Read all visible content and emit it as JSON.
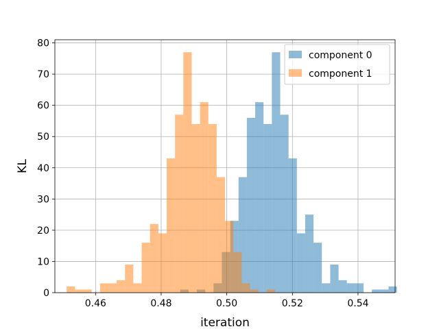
{
  "chart_data": {
    "type": "bar",
    "subtype": "overlapping-histogram",
    "xlabel": "iteration",
    "ylabel": "KL",
    "xlim": [
      0.4476,
      0.5513
    ],
    "ylim": [
      0,
      81
    ],
    "xticks": [
      0.46,
      0.48,
      0.5,
      0.52,
      0.54
    ],
    "xtick_labels": [
      "0.46",
      "0.48",
      "0.50",
      "0.52",
      "0.54"
    ],
    "yticks": [
      0,
      10,
      20,
      30,
      40,
      50,
      60,
      70,
      80
    ],
    "ytick_labels": [
      "0",
      "10",
      "20",
      "30",
      "40",
      "50",
      "60",
      "70",
      "80"
    ],
    "grid": true,
    "legend_placement": "upper-right",
    "series": [
      {
        "name": "component 0",
        "color": "#1f77b4",
        "alpha": 0.5,
        "bin_start": 0.4858,
        "bin_width": 0.00254,
        "counts": [
          1,
          0,
          1,
          0,
          3,
          13,
          23,
          37,
          56,
          61,
          54,
          77,
          57,
          43,
          19,
          25,
          16,
          3,
          9,
          4,
          3,
          3,
          0,
          1,
          1,
          2
        ]
      },
      {
        "name": "component 1",
        "color": "#ff7f0e",
        "alpha": 0.5,
        "bin_start": 0.4512,
        "bin_width": 0.00254,
        "counts": [
          2,
          1,
          1,
          0,
          3,
          3,
          4,
          9,
          3,
          16,
          22,
          19,
          43,
          57,
          77,
          54,
          61,
          54,
          37,
          23,
          13,
          3,
          1,
          0,
          1
        ]
      }
    ]
  }
}
